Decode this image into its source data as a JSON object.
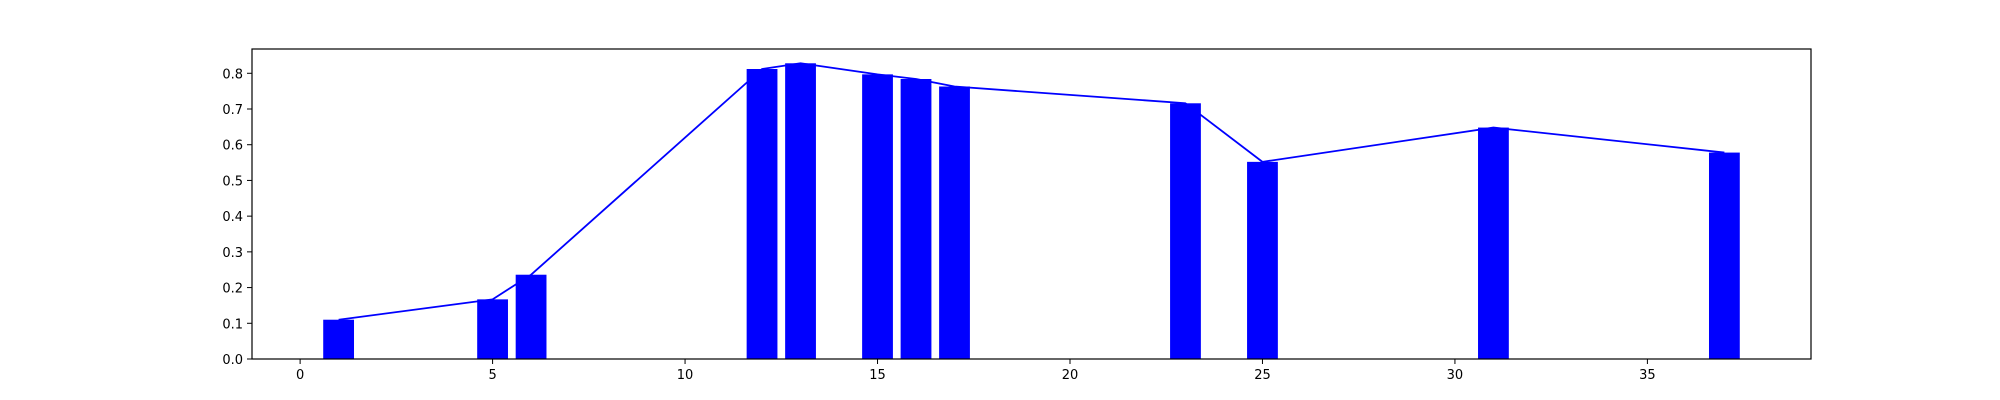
{
  "chart_data": {
    "type": "bar",
    "title": "",
    "xlabel": "",
    "ylabel": "",
    "xlim": [
      -1.25,
      39.25
    ],
    "ylim": [
      0,
      0.868
    ],
    "x_ticks": [
      0,
      5,
      10,
      15,
      20,
      25,
      30,
      35
    ],
    "y_ticks": [
      0.0,
      0.1,
      0.2,
      0.3,
      0.4,
      0.5,
      0.6,
      0.7,
      0.8
    ],
    "x_tick_labels": [
      "0",
      "5",
      "10",
      "15",
      "20",
      "25",
      "30",
      "35"
    ],
    "y_tick_labels": [
      "0.0",
      "0.1",
      "0.2",
      "0.3",
      "0.4",
      "0.5",
      "0.6",
      "0.7",
      "0.8"
    ],
    "grid": false,
    "legend": "none",
    "bar_width": 0.8,
    "bar_color": "#0000ff",
    "line_color": "#0000ff",
    "x": [
      1,
      5,
      6,
      12,
      13,
      15,
      16,
      17,
      23,
      25,
      31,
      37
    ],
    "values": [
      0.11,
      0.167,
      0.236,
      0.812,
      0.828,
      0.797,
      0.784,
      0.763,
      0.716,
      0.552,
      0.648,
      0.578
    ],
    "line": {
      "x": [
        1,
        5,
        6,
        12,
        13,
        15,
        16,
        17,
        23,
        25,
        31,
        37
      ],
      "y": [
        0.11,
        0.167,
        0.236,
        0.812,
        0.828,
        0.797,
        0.784,
        0.763,
        0.716,
        0.552,
        0.648,
        0.578
      ]
    }
  }
}
